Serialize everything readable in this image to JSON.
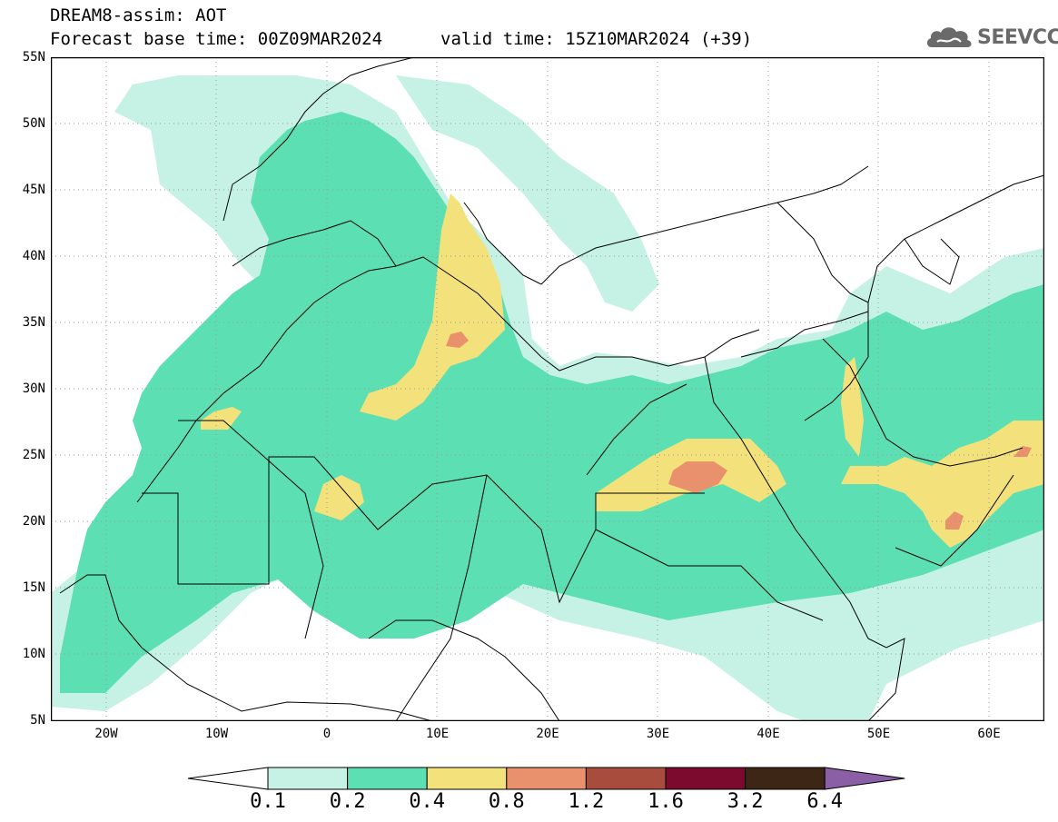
{
  "title": {
    "line1": "DREAM8-assim: AOT",
    "base_time": "Forecast base time: 00Z09MAR2024",
    "valid_time": "valid time: 15Z10MAR2024 (+39)"
  },
  "logo": {
    "text": "SEEVCCC",
    "icon": "cloud-icon"
  },
  "map": {
    "projection": "cylindrical",
    "lon_range": [
      -25,
      65
    ],
    "lat_range": [
      5,
      55
    ],
    "lat_labels": [
      "55N",
      "50N",
      "45N",
      "40N",
      "35N",
      "30N",
      "25N",
      "20N",
      "15N",
      "10N",
      "5N"
    ],
    "lon_labels": [
      "20W",
      "10W",
      "0",
      "10E",
      "20E",
      "30E",
      "40E",
      "50E",
      "60E"
    ],
    "grid": "dotted"
  },
  "colorbar": {
    "labels": [
      "0.1",
      "0.2",
      "0.4",
      "0.8",
      "1.2",
      "1.6",
      "3.2",
      "6.4"
    ],
    "colors": [
      "#ffffff",
      "#c6f1e5",
      "#5ddfb4",
      "#f3e27b",
      "#e9906d",
      "#a84d3d",
      "#7b0a2e",
      "#3d2616",
      "#8a5fa6"
    ]
  }
}
